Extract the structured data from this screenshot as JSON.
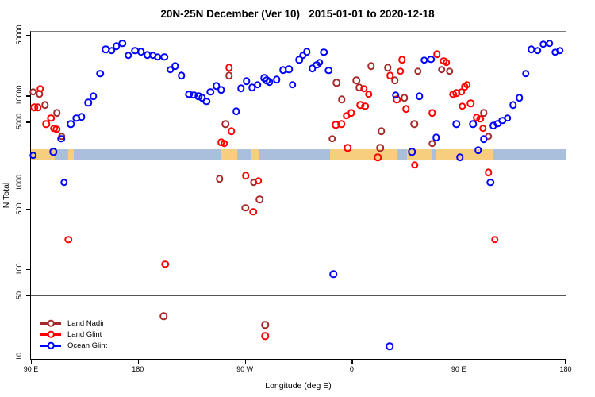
{
  "title": "20N-25N December (Ver 10)   2015-01-01 to 2020-12-18",
  "chart_data": {
    "type": "scatter",
    "title": "20N-25N December (Ver 10)   2015-01-01 to 2020-12-18",
    "xlabel": "Longitude (deg E)",
    "ylabel": "N Total",
    "x_axis": {
      "note": "longitude axis wraps eastward from 90E; positions are degrees east of 90E (0-450)",
      "range_deg": [
        0,
        450
      ],
      "ticks_deg": [
        0,
        90,
        180,
        270,
        360,
        450
      ],
      "tick_labels": [
        "90 E",
        "180",
        "90 W",
        "0",
        "90 E",
        "180"
      ]
    },
    "y_axis": {
      "scale": "log10",
      "range": [
        10,
        50000
      ],
      "ticks": [
        50000,
        10000,
        5000,
        1000,
        500,
        100,
        50,
        10
      ]
    },
    "reference_line_y": 50,
    "map_band": {
      "description": "thin world-map strip at the 20N-25N latitude band",
      "center_value": 2100,
      "ocean_color": "#AABFDC",
      "land_color": "#F6CE7E",
      "land_segments_deg": [
        [
          0,
          20
        ],
        [
          31.5,
          36
        ],
        [
          159.5,
          173.5
        ],
        [
          185,
          191.5
        ],
        [
          251.5,
          308.5
        ],
        [
          316.5,
          338
        ],
        [
          341,
          388.5
        ]
      ]
    },
    "legend_position": "bottom-left",
    "series": [
      {
        "name": "Land Nadir",
        "color": "#A52A2A",
        "points": [
          [
            2,
            11000
          ],
          [
            7.3,
            10500
          ],
          [
            12,
            7800
          ],
          [
            22,
            6300
          ],
          [
            26,
            3400
          ],
          [
            111.5,
            29
          ],
          [
            158.9,
            1100
          ],
          [
            163.6,
            4700
          ],
          [
            166.9,
            17000
          ],
          [
            180.3,
            510
          ],
          [
            187.6,
            1000
          ],
          [
            192.3,
            640
          ],
          [
            197,
            23
          ],
          [
            253.7,
            3200
          ],
          [
            257.1,
            14000
          ],
          [
            261.7,
            9000
          ],
          [
            273.8,
            15000
          ],
          [
            276.4,
            12400
          ],
          [
            286.4,
            22000
          ],
          [
            293.8,
            2500
          ],
          [
            295.1,
            3900
          ],
          [
            300.4,
            21000
          ],
          [
            306.4,
            15000
          ],
          [
            314.4,
            9400
          ],
          [
            322.5,
            4700
          ],
          [
            325.8,
            19000
          ],
          [
            337.8,
            2800
          ],
          [
            345.8,
            20000
          ],
          [
            352.5,
            19000
          ],
          [
            381.2,
            6300
          ],
          [
            385.2,
            3400
          ]
        ]
      },
      {
        "name": "Land Glint",
        "color": "#FF0000",
        "points": [
          [
            2.7,
            7300
          ],
          [
            6,
            7300
          ],
          [
            8,
            12000
          ],
          [
            12.7,
            4700
          ],
          [
            16.7,
            5500
          ],
          [
            19.4,
            4200
          ],
          [
            21.4,
            4100
          ],
          [
            31.4,
            220
          ],
          [
            112.9,
            115
          ],
          [
            160.2,
            2900
          ],
          [
            162.9,
            2800
          ],
          [
            166.9,
            21000
          ],
          [
            168.9,
            3900
          ],
          [
            180.9,
            1200
          ],
          [
            187,
            460
          ],
          [
            191.6,
            1050
          ],
          [
            197,
            17
          ],
          [
            256.4,
            4600
          ],
          [
            261.1,
            4700
          ],
          [
            265.7,
            5900
          ],
          [
            266.4,
            2500
          ],
          [
            269.7,
            6300
          ],
          [
            277.1,
            7800
          ],
          [
            280.4,
            12000
          ],
          [
            281.1,
            7600
          ],
          [
            284.4,
            10400
          ],
          [
            291.8,
            1950
          ],
          [
            302.4,
            17000
          ],
          [
            307.8,
            9000
          ],
          [
            311.1,
            19000
          ],
          [
            312.4,
            26000
          ],
          [
            315.8,
            7000
          ],
          [
            323.1,
            1600
          ],
          [
            337.8,
            6300
          ],
          [
            341.8,
            30000
          ],
          [
            347.2,
            25000
          ],
          [
            349.8,
            24000
          ],
          [
            355.2,
            10400
          ],
          [
            357.9,
            10700
          ],
          [
            362.5,
            11100
          ],
          [
            363,
            7600
          ],
          [
            365.2,
            12600
          ],
          [
            367.2,
            13400
          ],
          [
            369.9,
            8100
          ],
          [
            375.2,
            5600
          ],
          [
            377.9,
            5400
          ],
          [
            380.5,
            4200
          ],
          [
            385.2,
            1300
          ],
          [
            390.5,
            220
          ]
        ]
      },
      {
        "name": "Ocean Glint",
        "color": "#0000FF",
        "points": [
          [
            2,
            2050
          ],
          [
            18.7,
            2250
          ],
          [
            25.4,
            3200
          ],
          [
            28,
            1000
          ],
          [
            33.4,
            4700
          ],
          [
            38.1,
            5500
          ],
          [
            42.7,
            5700
          ],
          [
            48.1,
            8300
          ],
          [
            52.7,
            9800
          ],
          [
            58.1,
            18000
          ],
          [
            62.8,
            34000
          ],
          [
            68.1,
            33000
          ],
          [
            72.1,
            37000
          ],
          [
            76.8,
            40000
          ],
          [
            82.1,
            29000
          ],
          [
            87.5,
            33000
          ],
          [
            92.8,
            32000
          ],
          [
            98,
            29500
          ],
          [
            102.8,
            29000
          ],
          [
            106.8,
            28000
          ],
          [
            112.2,
            28000
          ],
          [
            117.5,
            20000
          ],
          [
            121.5,
            22000
          ],
          [
            126.8,
            17000
          ],
          [
            132.9,
            10400
          ],
          [
            136.9,
            10200
          ],
          [
            140.9,
            9800
          ],
          [
            144.2,
            9400
          ],
          [
            147.6,
            8600
          ],
          [
            150.9,
            11000
          ],
          [
            156.2,
            12900
          ],
          [
            160.2,
            11600
          ],
          [
            172.9,
            6600
          ],
          [
            176.9,
            12100
          ],
          [
            181.6,
            14700
          ],
          [
            186.2,
            12400
          ],
          [
            190.9,
            13400
          ],
          [
            196.3,
            16000
          ],
          [
            198.3,
            15000
          ],
          [
            200.9,
            14400
          ],
          [
            206.9,
            15300
          ],
          [
            212.3,
            19800
          ],
          [
            217,
            20200
          ],
          [
            220.3,
            13400
          ],
          [
            225.7,
            26000
          ],
          [
            229,
            29000
          ],
          [
            232.3,
            32000
          ],
          [
            237,
            20600
          ],
          [
            240.4,
            22500
          ],
          [
            243,
            24000
          ],
          [
            246.4,
            31500
          ],
          [
            250.4,
            19400
          ],
          [
            254.4,
            88
          ],
          [
            301.8,
            13
          ],
          [
            307.1,
            10200
          ],
          [
            320.5,
            2250
          ],
          [
            327.1,
            9800
          ],
          [
            331.1,
            25700
          ],
          [
            336.5,
            26300
          ],
          [
            341.1,
            3300
          ],
          [
            357.9,
            4700
          ],
          [
            361.2,
            1950
          ],
          [
            371.9,
            4700
          ],
          [
            376.5,
            2350
          ],
          [
            381.2,
            3150
          ],
          [
            386.6,
            1000
          ],
          [
            389.2,
            4500
          ],
          [
            392.6,
            4750
          ],
          [
            396.6,
            5200
          ],
          [
            401.2,
            5500
          ],
          [
            405.9,
            7800
          ],
          [
            411.2,
            9400
          ],
          [
            416.6,
            18000
          ],
          [
            421.2,
            34000
          ],
          [
            426.6,
            33000
          ],
          [
            431.2,
            39000
          ],
          [
            436.6,
            40000
          ],
          [
            441.2,
            31500
          ],
          [
            445.2,
            33000
          ]
        ]
      }
    ]
  }
}
